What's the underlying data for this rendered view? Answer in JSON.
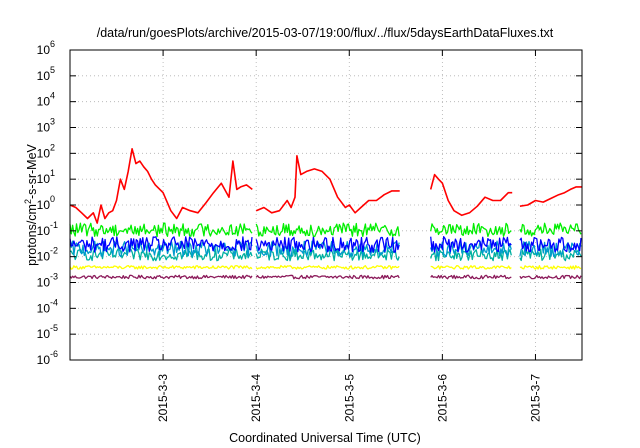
{
  "chart_data": {
    "type": "line",
    "title": "/data/run/goesPlots/archive/2015-03-07/19:00/flux/../flux/5daysEarthDataFluxes.txt",
    "xlabel": "Coordinated Universal Time (UTC)",
    "ylabel": {
      "base": "protons/cm",
      "sup": "2",
      "rest": "-s-sr-MeV"
    },
    "y_scale": "log",
    "ylim": [
      1e-06,
      1000000.0
    ],
    "xlim": [
      "2015-03-02T00:00",
      "2015-03-07T12:00"
    ],
    "grid": true,
    "legend": "none",
    "y_ticks": [
      {
        "value": 1e-06,
        "base": "10",
        "exp": "-6"
      },
      {
        "value": 1e-05,
        "base": "10",
        "exp": "-5"
      },
      {
        "value": 0.0001,
        "base": "10",
        "exp": "-4"
      },
      {
        "value": 0.001,
        "base": "10",
        "exp": "-3"
      },
      {
        "value": 0.01,
        "base": "10",
        "exp": "-2"
      },
      {
        "value": 0.1,
        "base": "10",
        "exp": "-1"
      },
      {
        "value": 1,
        "base": "10",
        "exp": "0"
      },
      {
        "value": 10.0,
        "base": "10",
        "exp": "1"
      },
      {
        "value": 100.0,
        "base": "10",
        "exp": "2"
      },
      {
        "value": 1000.0,
        "base": "10",
        "exp": "3"
      },
      {
        "value": 10000.0,
        "base": "10",
        "exp": "4"
      },
      {
        "value": 100000.0,
        "base": "10",
        "exp": "5"
      },
      {
        "value": 1000000.0,
        "base": "10",
        "exp": "6"
      }
    ],
    "x_ticks": [
      {
        "value": "2015-03-03T00:00",
        "label": "2015-3-3"
      },
      {
        "value": "2015-03-04T00:00",
        "label": "2015-3-4"
      },
      {
        "value": "2015-03-05T00:00",
        "label": "2015-3-5"
      },
      {
        "value": "2015-03-06T00:00",
        "label": "2015-3-6"
      },
      {
        "value": "2015-03-07T00:00",
        "label": "2015-3-7"
      }
    ],
    "series": [
      {
        "color": "#ff0000",
        "x": [
          "2015-03-02T00:00",
          "2015-03-02T01:30",
          "2015-03-02T03:00",
          "2015-03-02T04:30",
          "2015-03-02T06:00",
          "2015-03-02T07:00",
          "2015-03-02T08:00",
          "2015-03-02T09:00",
          "2015-03-02T10:00",
          "2015-03-02T11:00",
          "2015-03-02T12:00",
          "2015-03-02T13:00",
          "2015-03-02T14:00",
          "2015-03-02T15:00",
          "2015-03-02T16:00",
          "2015-03-02T17:00",
          "2015-03-02T18:00",
          "2015-03-02T19:00",
          "2015-03-02T20:00",
          "2015-03-02T21:00",
          "2015-03-02T22:00",
          "2015-03-03T00:00",
          "2015-03-03T02:00",
          "2015-03-03T03:30",
          "2015-03-03T05:00",
          "2015-03-03T07:00",
          "2015-03-03T09:00",
          "2015-03-03T11:00",
          "2015-03-03T13:00",
          "2015-03-03T15:00",
          "2015-03-03T17:00",
          "2015-03-03T18:00",
          "2015-03-03T19:00",
          "2015-03-03T20:00",
          "2015-03-03T21:30",
          "2015-03-03T23:00",
          "2015-03-03T23:01",
          "2015-03-04T00:00",
          "2015-03-04T02:00",
          "2015-03-04T04:00",
          "2015-03-04T06:00",
          "2015-03-04T08:00",
          "2015-03-04T09:00",
          "2015-03-04T10:00",
          "2015-03-04T10:30",
          "2015-03-04T11:30",
          "2015-03-04T13:00",
          "2015-03-04T15:00",
          "2015-03-04T17:00",
          "2015-03-04T19:00",
          "2015-03-04T21:00",
          "2015-03-04T23:00",
          "2015-03-05T00:00",
          "2015-03-05T01:30",
          "2015-03-05T03:00",
          "2015-03-05T05:00",
          "2015-03-05T07:00",
          "2015-03-05T09:00",
          "2015-03-05T11:00",
          "2015-03-05T13:00",
          "2015-03-05T13:01",
          "2015-03-05T21:00",
          "2015-03-05T22:00",
          "2015-03-05T23:00",
          "2015-03-06T00:00",
          "2015-03-06T01:30",
          "2015-03-06T03:00",
          "2015-03-06T05:00",
          "2015-03-06T07:00",
          "2015-03-06T09:00",
          "2015-03-06T11:00",
          "2015-03-06T13:00",
          "2015-03-06T15:00",
          "2015-03-06T17:00",
          "2015-03-06T18:00",
          "2015-03-06T18:01",
          "2015-03-06T20:00",
          "2015-03-06T22:00",
          "2015-03-07T00:00",
          "2015-03-07T02:00",
          "2015-03-07T04:00",
          "2015-03-07T06:00",
          "2015-03-07T07:30",
          "2015-03-07T09:00",
          "2015-03-07T10:30",
          "2015-03-07T12:00"
        ],
        "y": [
          1.0,
          0.8,
          0.5,
          0.3,
          0.5,
          0.2,
          1.0,
          0.3,
          0.5,
          0.6,
          1.5,
          10,
          4,
          20,
          150,
          40,
          50,
          30,
          20,
          10,
          6,
          3,
          0.6,
          0.3,
          0.8,
          0.6,
          0.5,
          1.2,
          3,
          7,
          2,
          50,
          4,
          5,
          6,
          4,
          null,
          0.6,
          0.8,
          0.5,
          0.6,
          1.5,
          0.8,
          2,
          80,
          15,
          20,
          25,
          20,
          10,
          2,
          0.8,
          1.0,
          0.5,
          0.8,
          1.5,
          1.5,
          2.5,
          3.5,
          3.5,
          null,
          4,
          15,
          10,
          7,
          1.5,
          0.6,
          0.4,
          0.5,
          0.9,
          2,
          1.5,
          1.5,
          3,
          3,
          null,
          0.9,
          1.0,
          1.5,
          1.3,
          1.8,
          2.5,
          3,
          4,
          5,
          5
        ]
      },
      {
        "color": "#00ee00",
        "band": [
          0.06,
          0.2
        ],
        "segments": [
          [
            "2015-03-02T00:00",
            "2015-03-03T23:00"
          ],
          [
            "2015-03-04T00:00",
            "2015-03-05T13:00"
          ],
          [
            "2015-03-05T21:00",
            "2015-03-06T18:00"
          ],
          [
            "2015-03-06T20:00",
            "2015-03-07T12:00"
          ]
        ]
      },
      {
        "color": "#0000ff",
        "band": [
          0.015,
          0.06
        ],
        "segments": [
          [
            "2015-03-02T00:00",
            "2015-03-03T23:00"
          ],
          [
            "2015-03-04T00:00",
            "2015-03-05T13:00"
          ],
          [
            "2015-03-05T21:00",
            "2015-03-06T18:00"
          ],
          [
            "2015-03-06T20:00",
            "2015-03-07T12:00"
          ]
        ]
      },
      {
        "color": "#009acd",
        "band": [
          0.01,
          0.04
        ],
        "segments": [
          [
            "2015-03-02T00:00",
            "2015-03-03T23:00"
          ],
          [
            "2015-03-04T00:00",
            "2015-03-05T13:00"
          ],
          [
            "2015-03-05T21:00",
            "2015-03-06T18:00"
          ],
          [
            "2015-03-06T20:00",
            "2015-03-07T12:00"
          ]
        ]
      },
      {
        "color": "#00b0a0",
        "band": [
          0.007,
          0.02
        ],
        "segments": [
          [
            "2015-03-02T00:00",
            "2015-03-03T23:00"
          ],
          [
            "2015-03-04T00:00",
            "2015-03-05T13:00"
          ],
          [
            "2015-03-05T21:00",
            "2015-03-06T18:00"
          ],
          [
            "2015-03-06T20:00",
            "2015-03-07T12:00"
          ]
        ]
      },
      {
        "color": "#ffff00",
        "band": [
          0.0033,
          0.0045
        ],
        "segments": [
          [
            "2015-03-02T00:00",
            "2015-03-03T23:00"
          ],
          [
            "2015-03-04T00:00",
            "2015-03-05T13:00"
          ],
          [
            "2015-03-05T21:00",
            "2015-03-06T18:00"
          ],
          [
            "2015-03-06T20:00",
            "2015-03-07T12:00"
          ]
        ]
      },
      {
        "color": "#8b1a5a",
        "band": [
          0.0014,
          0.0019
        ],
        "segments": [
          [
            "2015-03-02T00:00",
            "2015-03-03T23:00"
          ],
          [
            "2015-03-04T00:00",
            "2015-03-05T13:00"
          ],
          [
            "2015-03-05T21:00",
            "2015-03-06T18:00"
          ],
          [
            "2015-03-06T20:00",
            "2015-03-07T12:00"
          ]
        ]
      }
    ]
  }
}
